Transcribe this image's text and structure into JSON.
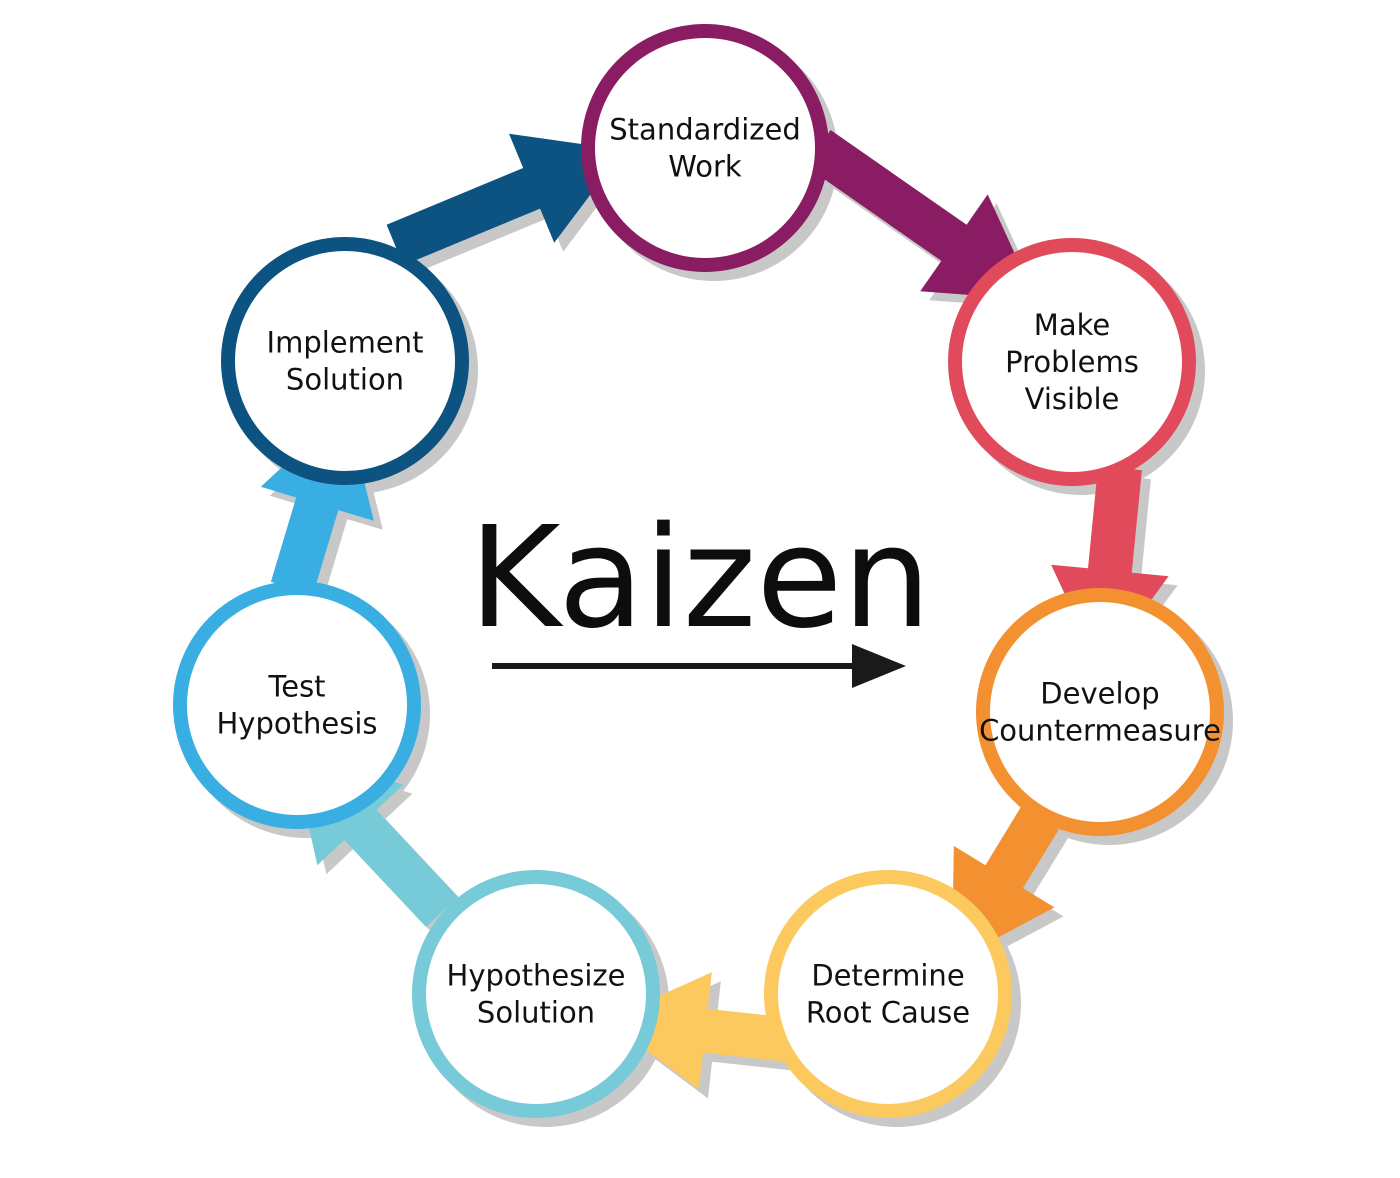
{
  "title": "Kaizen",
  "steps": [
    {
      "id": "standardized-work",
      "lines": [
        "Standardized",
        "Work"
      ],
      "color": "#8a1c63"
    },
    {
      "id": "make-problems-visible",
      "lines": [
        "Make",
        "Problems",
        "Visible"
      ],
      "color": "#e04a5a"
    },
    {
      "id": "develop-countermeasure",
      "lines": [
        "Develop",
        "Countermeasure"
      ],
      "color": "#f39130"
    },
    {
      "id": "determine-root-cause",
      "lines": [
        "Determine",
        "Root Cause"
      ],
      "color": "#fcc95e"
    },
    {
      "id": "hypothesize-solution",
      "lines": [
        "Hypothesize",
        "Solution"
      ],
      "color": "#77cad7"
    },
    {
      "id": "test-hypothesis",
      "lines": [
        "Test",
        "Hypothesis"
      ],
      "color": "#39aee2"
    },
    {
      "id": "implement-solution",
      "lines": [
        "Implement",
        "Solution"
      ],
      "color": "#0c5382"
    }
  ],
  "colors": {
    "title": "#0d0d0d",
    "title_arrow": "#1a1a1a",
    "shadow": "#c8c8c8"
  }
}
